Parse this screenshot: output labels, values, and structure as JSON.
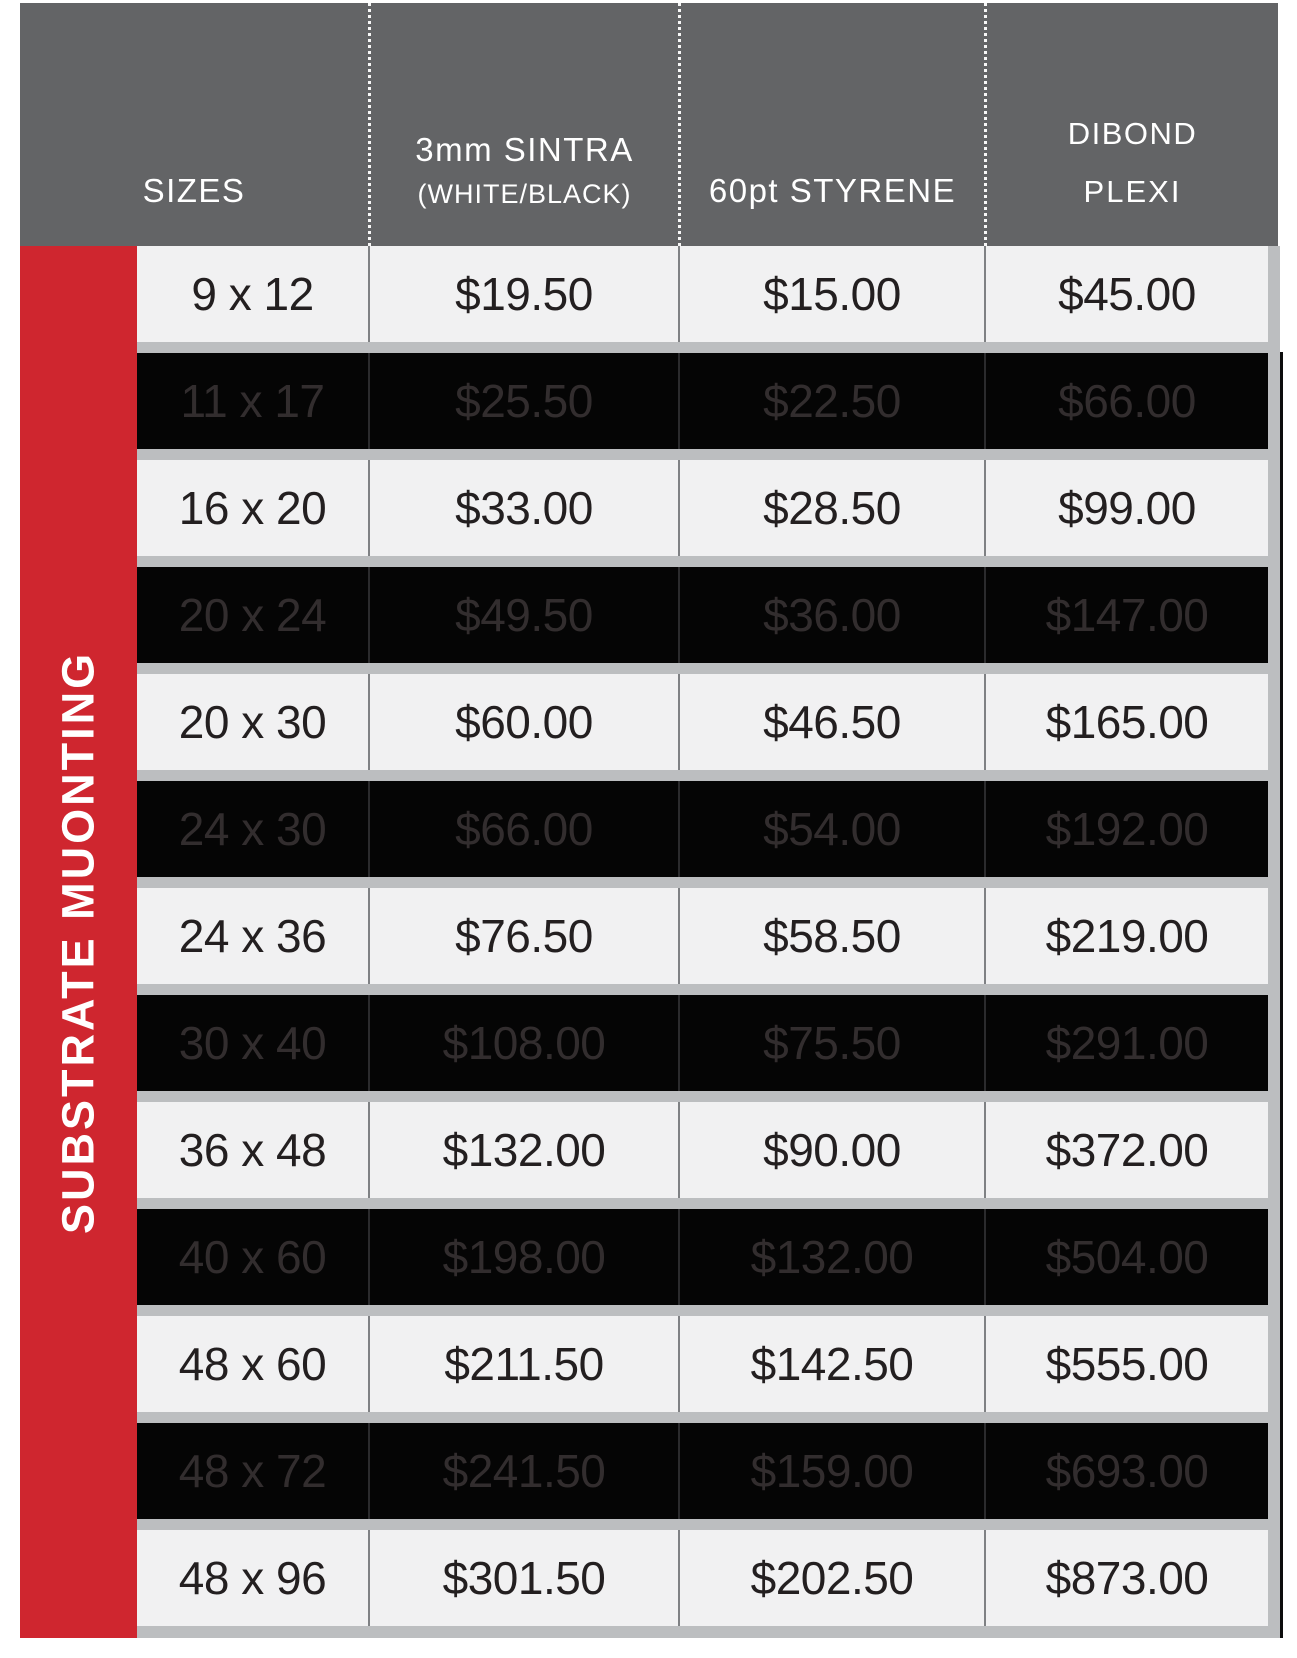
{
  "header": {
    "columns": [
      {
        "title": "SIZES",
        "subtitle": ""
      },
      {
        "title": "3mm SINTRA",
        "subtitle": "(WHITE/BLACK)"
      },
      {
        "title": "60pt STYRENE",
        "subtitle": ""
      },
      {
        "title": "DIBOND",
        "subtitle": "PLEXI"
      }
    ]
  },
  "sideband": {
    "label": "SUBSTRATE MUONTING"
  },
  "table": {
    "column_keys": [
      "size",
      "sintra",
      "styrene",
      "dibond"
    ],
    "rows": [
      {
        "size": "9 x 12",
        "sintra": "$19.50",
        "styrene": "$15.00",
        "dibond": "$45.00",
        "variant": "light"
      },
      {
        "size": "11 x 17",
        "sintra": "$25.50",
        "styrene": "$22.50",
        "dibond": "$66.00",
        "variant": "dark"
      },
      {
        "size": "16 x 20",
        "sintra": "$33.00",
        "styrene": "$28.50",
        "dibond": "$99.00",
        "variant": "light"
      },
      {
        "size": "20 x 24",
        "sintra": "$49.50",
        "styrene": "$36.00",
        "dibond": "$147.00",
        "variant": "dark"
      },
      {
        "size": "20 x 30",
        "sintra": "$60.00",
        "styrene": "$46.50",
        "dibond": "$165.00",
        "variant": "light"
      },
      {
        "size": "24 x 30",
        "sintra": "$66.00",
        "styrene": "$54.00",
        "dibond": "$192.00",
        "variant": "dark"
      },
      {
        "size": "24 x 36",
        "sintra": "$76.50",
        "styrene": "$58.50",
        "dibond": "$219.00",
        "variant": "light"
      },
      {
        "size": "30 x 40",
        "sintra": "$108.00",
        "styrene": "$75.50",
        "dibond": "$291.00",
        "variant": "dark"
      },
      {
        "size": "36 x 48",
        "sintra": "$132.00",
        "styrene": "$90.00",
        "dibond": "$372.00",
        "variant": "light"
      },
      {
        "size": "40 x 60",
        "sintra": "$198.00",
        "styrene": "$132.00",
        "dibond": "$504.00",
        "variant": "dark"
      },
      {
        "size": "48 x 60",
        "sintra": "$211.50",
        "styrene": "$142.50",
        "dibond": "$555.00",
        "variant": "light"
      },
      {
        "size": "48 x 72",
        "sintra": "$241.50",
        "styrene": "$159.00",
        "dibond": "$693.00",
        "variant": "dark"
      },
      {
        "size": "48 x 96",
        "sintra": "$301.50",
        "styrene": "$202.50",
        "dibond": "$873.00",
        "variant": "light"
      }
    ]
  },
  "colors": {
    "header_bg": "#636466",
    "band_red": "#cf262f",
    "row_light_bg": "#f1f1f2",
    "row_dark_bg": "#050505",
    "gap_gray": "#bcbec0",
    "light_row_text": "#231f20",
    "dark_row_text": "#322d2e",
    "header_text": "#ffffff"
  }
}
